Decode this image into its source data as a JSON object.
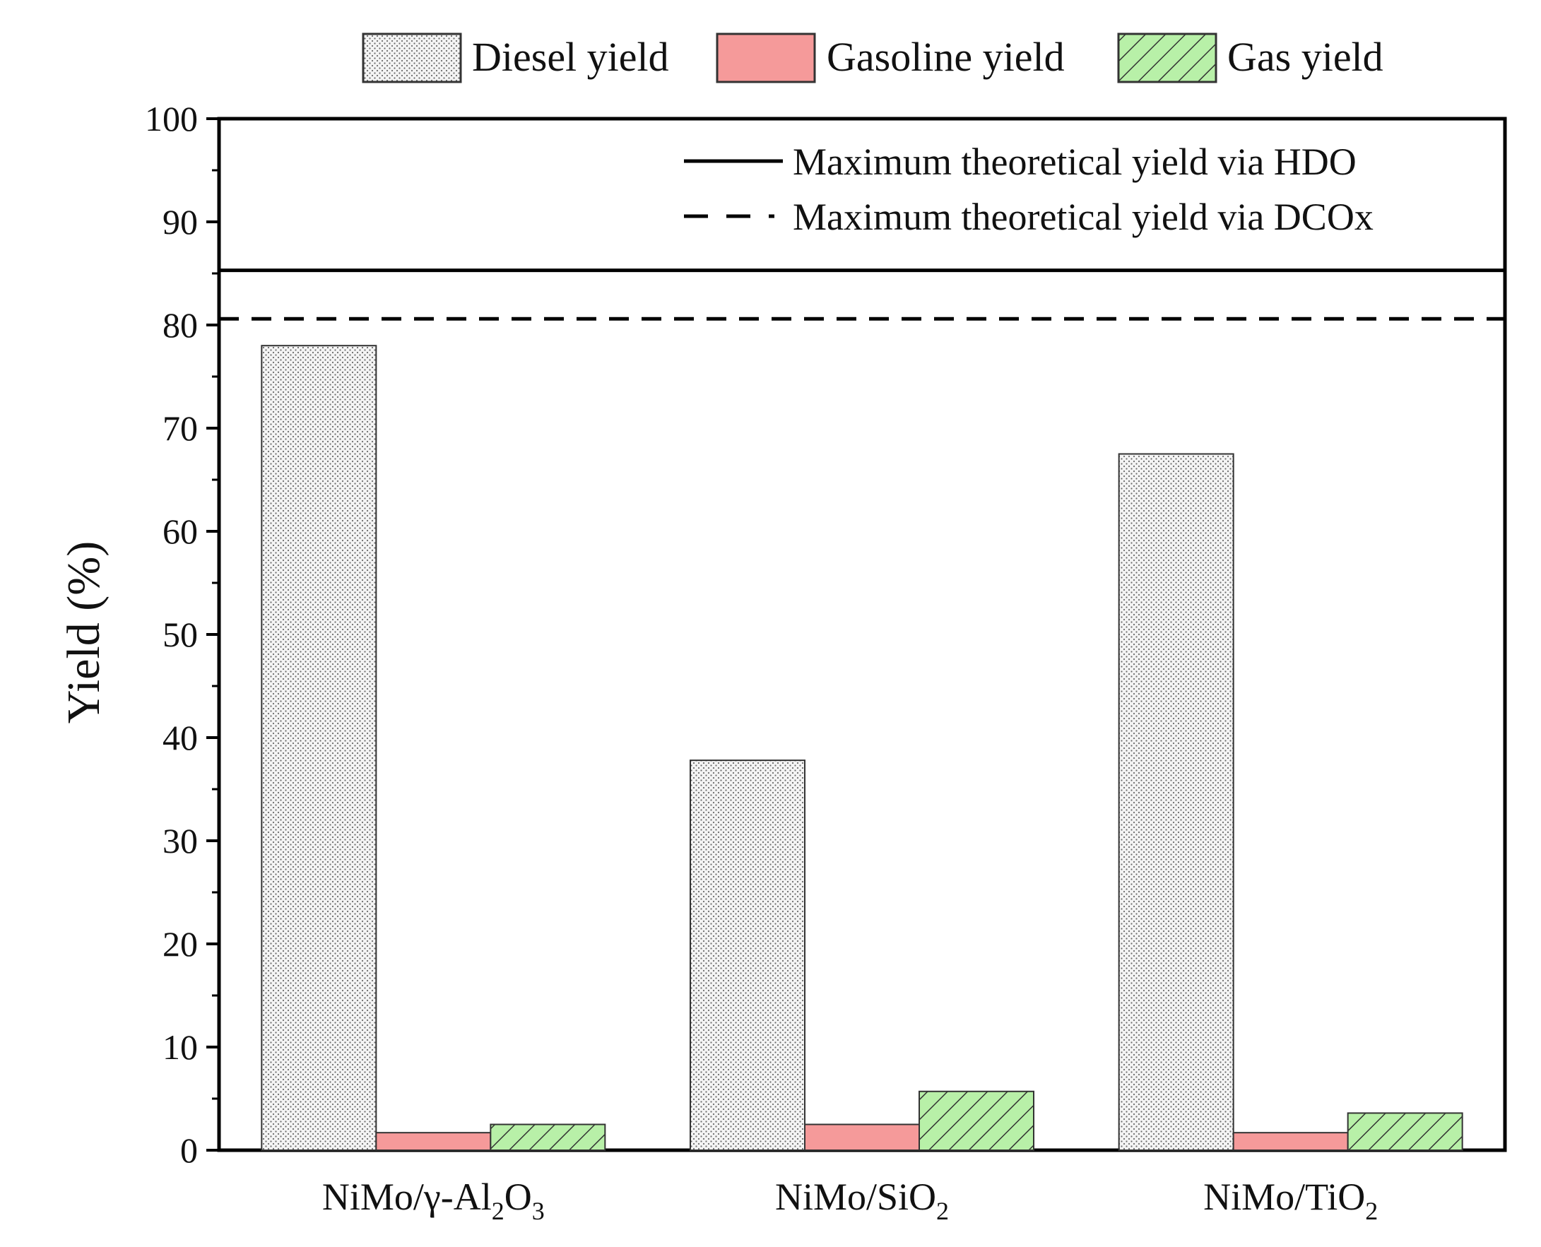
{
  "chart_data": {
    "type": "bar",
    "title": "",
    "xlabel": "",
    "ylabel": "Yield (%)",
    "ylim": [
      0,
      100
    ],
    "yticks": [
      0,
      10,
      20,
      30,
      40,
      50,
      60,
      70,
      80,
      90,
      100
    ],
    "grid": false,
    "categories": [
      {
        "label": "NiMo/γ-Al₂O₃",
        "parts": [
          [
            "NiMo/γ-Al",
            ""
          ],
          [
            "2",
            "sub"
          ],
          [
            "O",
            ""
          ],
          [
            "3",
            "sub"
          ]
        ]
      },
      {
        "label": "NiMo/SiO₂",
        "parts": [
          [
            "NiMo/SiO",
            ""
          ],
          [
            "2",
            "sub"
          ]
        ]
      },
      {
        "label": "NiMo/TiO₂",
        "parts": [
          [
            "NiMo/TiO",
            ""
          ],
          [
            "2",
            "sub"
          ]
        ]
      }
    ],
    "series": [
      {
        "name": "Diesel yield",
        "pattern": "dots",
        "color": "#f2f2f2",
        "values": [
          78.0,
          37.8,
          67.5
        ]
      },
      {
        "name": "Gasoline yield",
        "pattern": "solid",
        "color": "#f59a9a",
        "values": [
          1.7,
          2.5,
          1.7
        ]
      },
      {
        "name": "Gas yield",
        "pattern": "hatch",
        "color": "#b8f0a8",
        "values": [
          2.5,
          5.7,
          3.6
        ]
      }
    ],
    "reference_lines": [
      {
        "label": "Maximum theoretical yield via HDO",
        "value": 85.3,
        "style": "solid"
      },
      {
        "label": "Maximum theoretical yield via DCOx",
        "value": 80.6,
        "style": "dashed"
      }
    ],
    "legend_position": "top"
  }
}
